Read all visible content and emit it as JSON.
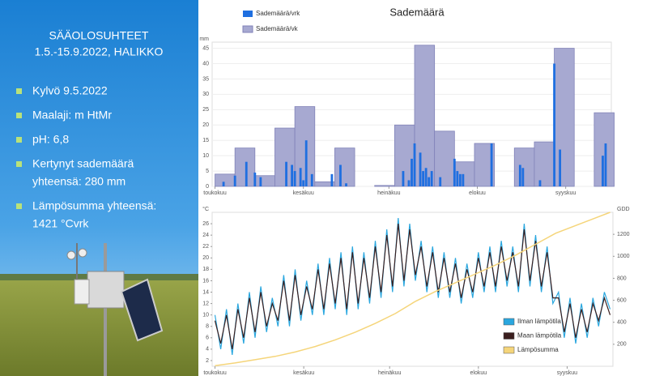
{
  "slide": {
    "title_lines": [
      "SÄÄOLOSUHTEET",
      "1.5.-15.9.2022, HALIKKO"
    ],
    "bullets": [
      [
        "Kylvö 9.5.2022"
      ],
      [
        "Maalaji: m HtMr"
      ],
      [
        "pH: 6,8"
      ],
      [
        "Kertynyt sademäärä",
        "yhteensä: 280 mm"
      ],
      [
        "Lämpösumma yhteensä:",
        "1421 °Cvrk"
      ]
    ]
  },
  "chart_data": [
    {
      "type": "bar",
      "title": "Sademäärä",
      "y_unit": "mm",
      "xlim": [
        -1,
        139
      ],
      "xticks": [
        {
          "value": 0,
          "label": "toukokuu"
        },
        {
          "value": 31,
          "label": "kesäkuu"
        },
        {
          "value": 61,
          "label": "heinäkuu"
        },
        {
          "value": 92,
          "label": "elokuu"
        },
        {
          "value": 123,
          "label": "syyskuu"
        }
      ],
      "ylim": [
        0,
        47
      ],
      "yticks": [
        0,
        5,
        10,
        15,
        20,
        25,
        30,
        35,
        40,
        45
      ],
      "grid": true,
      "series": [
        {
          "name": "Sademäärä/vrk",
          "color": "#1f6fe0",
          "x": [
            3,
            7,
            11,
            14,
            16,
            25,
            27,
            28,
            30,
            31,
            32,
            34,
            41,
            44,
            46,
            66,
            68,
            69,
            70,
            72,
            73,
            74,
            75,
            76,
            79,
            84,
            85,
            86,
            87,
            97,
            107,
            108,
            114,
            119,
            121,
            136,
            137
          ],
          "values": [
            1.5,
            3.5,
            8,
            4.5,
            3,
            8,
            7,
            5,
            6,
            2,
            15,
            4,
            4,
            7,
            1,
            5,
            2,
            9,
            14,
            11,
            5,
            6,
            3,
            5,
            3,
            9,
            5,
            4,
            4,
            14,
            7,
            6,
            2,
            40,
            12,
            10,
            14
          ]
        },
        {
          "name": "Sademäärä/vk",
          "color": "#a7a9d1",
          "x": [
            0,
            7,
            14,
            21,
            28,
            35,
            42,
            56,
            63,
            70,
            77,
            84,
            91,
            105,
            112,
            119,
            133
          ],
          "values": [
            4,
            12.5,
            3.5,
            19,
            26,
            1.5,
            12.5,
            0.3,
            20,
            46,
            18,
            8,
            14,
            12.5,
            14.5,
            45,
            24
          ]
        }
      ]
    },
    {
      "type": "line",
      "y_unit": "°C",
      "y2_unit": "GDD",
      "xlim": [
        -1,
        139
      ],
      "xticks": [
        {
          "value": 0,
          "label": "toukokuu"
        },
        {
          "value": 31,
          "label": "kesäkuu"
        },
        {
          "value": 61,
          "label": "heinäkuu"
        },
        {
          "value": 92,
          "label": "elokuu"
        },
        {
          "value": 123,
          "label": "syyskuu"
        }
      ],
      "ylim": [
        1,
        28
      ],
      "yticks": [
        2,
        4,
        6,
        8,
        10,
        12,
        14,
        16,
        18,
        20,
        22,
        24,
        26
      ],
      "y2lim": [
        0,
        1400
      ],
      "y2ticks": [
        200,
        400,
        600,
        800,
        1000,
        1200
      ],
      "grid": false,
      "series": [
        {
          "name": "Ilman lämpötila",
          "color": "#2aa7df",
          "x": [
            0,
            2,
            4,
            6,
            8,
            10,
            12,
            14,
            16,
            18,
            20,
            22,
            24,
            26,
            28,
            30,
            32,
            34,
            36,
            38,
            40,
            42,
            44,
            46,
            48,
            50,
            52,
            54,
            56,
            58,
            60,
            62,
            64,
            66,
            68,
            70,
            72,
            74,
            76,
            78,
            80,
            82,
            84,
            86,
            88,
            90,
            92,
            94,
            96,
            98,
            100,
            102,
            104,
            106,
            108,
            110,
            112,
            114,
            116,
            118,
            120,
            122,
            124,
            126,
            128,
            130,
            132,
            134,
            136,
            138
          ],
          "values": [
            10,
            4,
            11,
            3,
            12,
            5,
            14,
            6,
            15,
            7,
            13,
            8,
            17,
            8,
            18,
            9,
            16,
            10,
            19,
            10,
            20,
            11,
            21,
            10,
            22,
            11,
            21,
            12,
            23,
            13,
            25,
            14,
            27,
            15,
            26,
            16,
            23,
            14,
            22,
            13,
            21,
            13,
            20,
            12,
            19,
            13,
            21,
            14,
            22,
            14,
            23,
            15,
            22,
            14,
            26,
            15,
            24,
            14,
            22,
            12,
            14,
            6,
            13,
            5,
            12,
            6,
            13,
            8,
            14,
            11
          ]
        },
        {
          "name": "Maan lämpötila",
          "color": "#3b1f1f",
          "x": [
            0,
            2,
            4,
            6,
            8,
            10,
            12,
            14,
            16,
            18,
            20,
            22,
            24,
            26,
            28,
            30,
            32,
            34,
            36,
            38,
            40,
            42,
            44,
            46,
            48,
            50,
            52,
            54,
            56,
            58,
            60,
            62,
            64,
            66,
            68,
            70,
            72,
            74,
            76,
            78,
            80,
            82,
            84,
            86,
            88,
            90,
            92,
            94,
            96,
            98,
            100,
            102,
            104,
            106,
            108,
            110,
            112,
            114,
            116,
            118,
            120,
            122,
            124,
            126,
            128,
            130,
            132,
            134,
            136,
            138
          ],
          "values": [
            9,
            5,
            10,
            4,
            11,
            6,
            13,
            7,
            14,
            8,
            12,
            9,
            16,
            9,
            17,
            10,
            15,
            11,
            18,
            11,
            19,
            12,
            20,
            11,
            21,
            12,
            20,
            13,
            22,
            14,
            24,
            15,
            26,
            16,
            25,
            17,
            22,
            15,
            21,
            14,
            20,
            14,
            19,
            13,
            18,
            14,
            20,
            15,
            21,
            15,
            22,
            16,
            21,
            15,
            25,
            16,
            23,
            15,
            21,
            13,
            13,
            7,
            12,
            6,
            11,
            7,
            12,
            9,
            13,
            10
          ]
        },
        {
          "name": "Lämpösumma",
          "color": "#f5d57a",
          "axis": "y2",
          "x": [
            0,
            7,
            14,
            21,
            28,
            35,
            42,
            49,
            56,
            63,
            70,
            77,
            84,
            91,
            98,
            105,
            112,
            119,
            126,
            133,
            138
          ],
          "values": [
            5,
            30,
            60,
            90,
            130,
            180,
            240,
            310,
            390,
            480,
            590,
            680,
            760,
            840,
            920,
            1010,
            1110,
            1210,
            1280,
            1350,
            1400
          ]
        }
      ]
    }
  ]
}
